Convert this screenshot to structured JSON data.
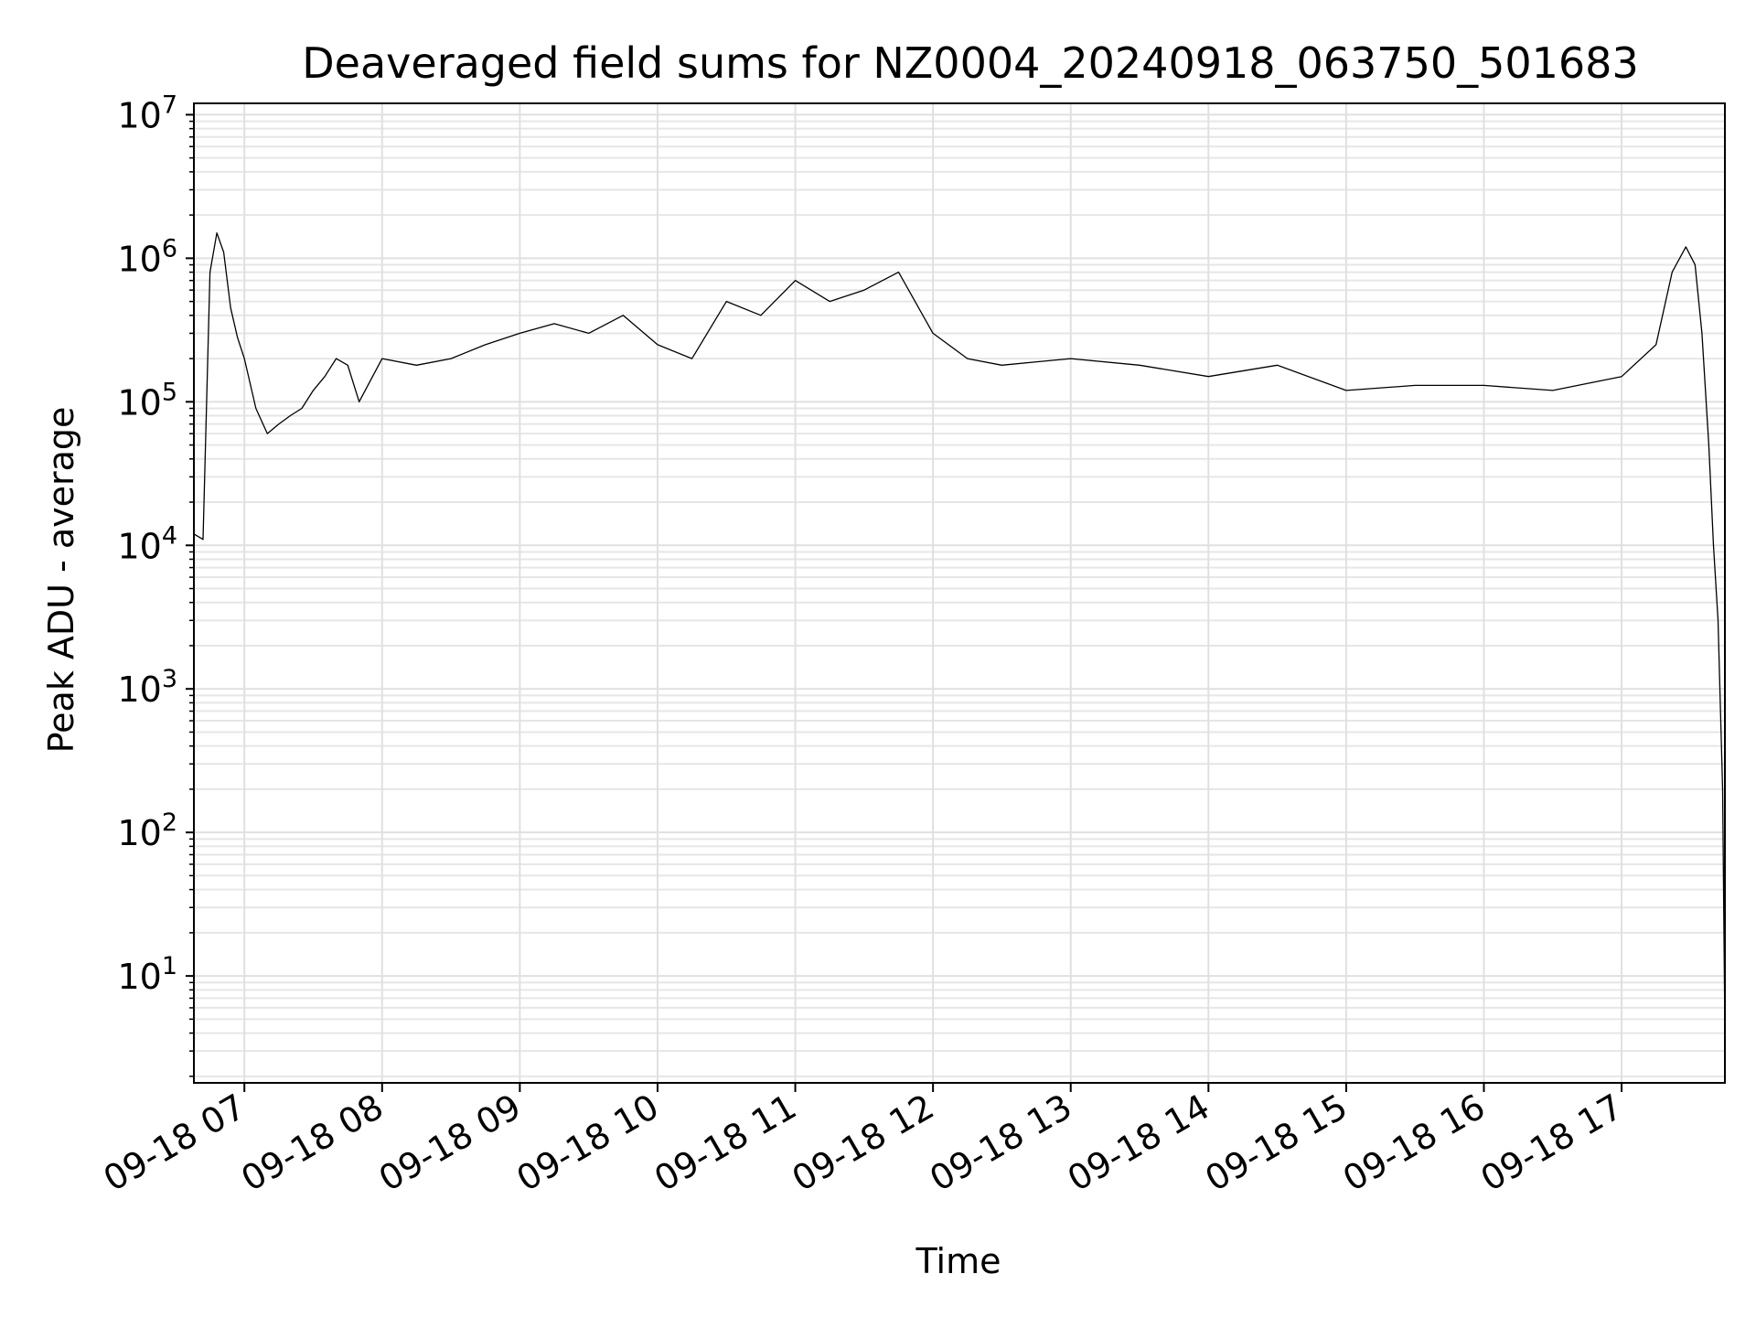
{
  "chart_data": {
    "type": "line",
    "title": "Deaveraged field sums for NZ0004_20240918_063750_501683",
    "xlabel": "Time",
    "ylabel": "Peak ADU - average",
    "yscale": "log",
    "ylim": [
      1.8,
      12000000
    ],
    "xlim": [
      "2024-09-18 06:38",
      "2024-09-18 17:45"
    ],
    "grid": "major and minor, light gray",
    "line_color": "#000000",
    "x_ticks": [
      {
        "time": "2024-09-18 07:00",
        "label": "09-18 07"
      },
      {
        "time": "2024-09-18 08:00",
        "label": "09-18 08"
      },
      {
        "time": "2024-09-18 09:00",
        "label": "09-18 09"
      },
      {
        "time": "2024-09-18 10:00",
        "label": "09-18 10"
      },
      {
        "time": "2024-09-18 11:00",
        "label": "09-18 11"
      },
      {
        "time": "2024-09-18 12:00",
        "label": "09-18 12"
      },
      {
        "time": "2024-09-18 13:00",
        "label": "09-18 13"
      },
      {
        "time": "2024-09-18 14:00",
        "label": "09-18 14"
      },
      {
        "time": "2024-09-18 15:00",
        "label": "09-18 15"
      },
      {
        "time": "2024-09-18 16:00",
        "label": "09-18 16"
      },
      {
        "time": "2024-09-18 17:00",
        "label": "09-18 17"
      }
    ],
    "y_ticks": [
      {
        "value": 10,
        "base": "10",
        "exp": "1"
      },
      {
        "value": 100,
        "base": "10",
        "exp": "2"
      },
      {
        "value": 1000,
        "base": "10",
        "exp": "3"
      },
      {
        "value": 10000,
        "base": "10",
        "exp": "4"
      },
      {
        "value": 100000,
        "base": "10",
        "exp": "5"
      },
      {
        "value": 1000000,
        "base": "10",
        "exp": "6"
      },
      {
        "value": 10000000,
        "base": "10",
        "exp": "7"
      }
    ],
    "series": [
      {
        "x": [
          "2024-09-18 06:38",
          "2024-09-18 06:42",
          "2024-09-18 06:45",
          "2024-09-18 06:48",
          "2024-09-18 06:51",
          "2024-09-18 06:54",
          "2024-09-18 06:57",
          "2024-09-18 07:00",
          "2024-09-18 07:05",
          "2024-09-18 07:10",
          "2024-09-18 07:15",
          "2024-09-18 07:20",
          "2024-09-18 07:25",
          "2024-09-18 07:30",
          "2024-09-18 07:35",
          "2024-09-18 07:40",
          "2024-09-18 07:45",
          "2024-09-18 07:50",
          "2024-09-18 08:00",
          "2024-09-18 08:15",
          "2024-09-18 08:30",
          "2024-09-18 08:45",
          "2024-09-18 09:00",
          "2024-09-18 09:15",
          "2024-09-18 09:30",
          "2024-09-18 09:45",
          "2024-09-18 10:00",
          "2024-09-18 10:15",
          "2024-09-18 10:30",
          "2024-09-18 10:45",
          "2024-09-18 11:00",
          "2024-09-18 11:15",
          "2024-09-18 11:30",
          "2024-09-18 11:45",
          "2024-09-18 12:00",
          "2024-09-18 12:15",
          "2024-09-18 12:30",
          "2024-09-18 13:00",
          "2024-09-18 13:30",
          "2024-09-18 14:00",
          "2024-09-18 14:30",
          "2024-09-18 15:00",
          "2024-09-18 15:30",
          "2024-09-18 16:00",
          "2024-09-18 16:30",
          "2024-09-18 17:00",
          "2024-09-18 17:15",
          "2024-09-18 17:22",
          "2024-09-18 17:28",
          "2024-09-18 17:32",
          "2024-09-18 17:35",
          "2024-09-18 17:38",
          "2024-09-18 17:40",
          "2024-09-18 17:42",
          "2024-09-18 17:44",
          "2024-09-18 17:45"
        ],
        "y": [
          12000,
          11000,
          800000,
          1500000,
          1100000,
          450000,
          280000,
          200000,
          90000,
          60000,
          70000,
          80000,
          90000,
          120000,
          150000,
          200000,
          180000,
          100000,
          200000,
          180000,
          200000,
          250000,
          300000,
          350000,
          300000,
          400000,
          250000,
          200000,
          500000,
          400000,
          700000,
          500000,
          600000,
          800000,
          300000,
          200000,
          180000,
          200000,
          180000,
          150000,
          180000,
          120000,
          130000,
          130000,
          120000,
          150000,
          250000,
          800000,
          1200000,
          900000,
          300000,
          50000,
          10000,
          3000,
          200,
          4
        ]
      }
    ]
  }
}
